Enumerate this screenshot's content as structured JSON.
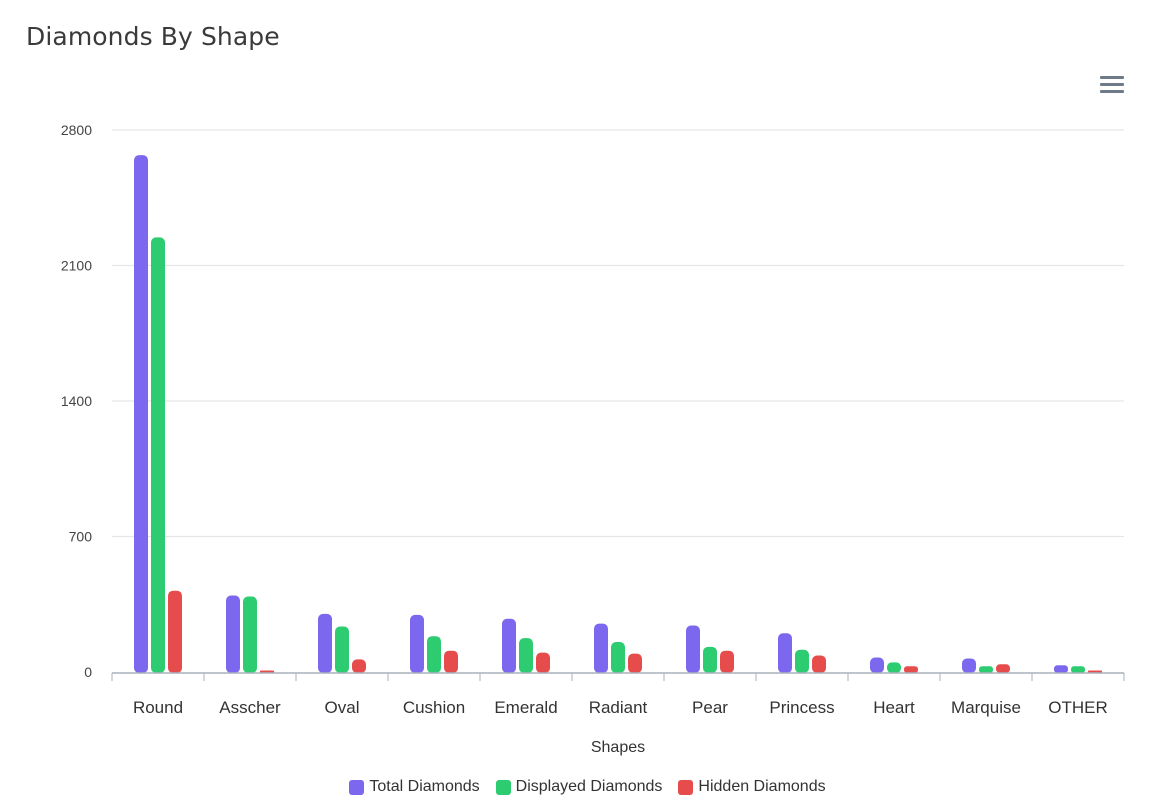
{
  "title": "Diamonds By Shape",
  "menu_icon": "hamburger-menu-icon",
  "chart_data": {
    "type": "bar",
    "title": "Diamonds By Shape",
    "xlabel": "Shapes",
    "ylabel": "",
    "ylim": [
      0,
      2800
    ],
    "yticks": [
      "0",
      "700",
      "1400",
      "2100",
      "2800"
    ],
    "grid": true,
    "legend_position": "bottom",
    "categories": [
      "Round",
      "Asscher",
      "Oval",
      "Cushion",
      "Emerald",
      "Radiant",
      "Pear",
      "Princess",
      "Heart",
      "Marquise",
      "OTHER"
    ],
    "series": [
      {
        "name": "Total Diamonds",
        "color": "#7b68ee",
        "values": [
          2670,
          395,
          300,
          295,
          275,
          250,
          240,
          200,
          75,
          70,
          35
        ]
      },
      {
        "name": "Displayed Diamonds",
        "color": "#2ecc71",
        "values": [
          2245,
          390,
          235,
          185,
          175,
          155,
          130,
          115,
          50,
          30,
          30
        ]
      },
      {
        "name": "Hidden Diamonds",
        "color": "#e74c4c",
        "values": [
          420,
          5,
          65,
          110,
          100,
          95,
          110,
          85,
          30,
          40,
          5
        ]
      }
    ]
  }
}
